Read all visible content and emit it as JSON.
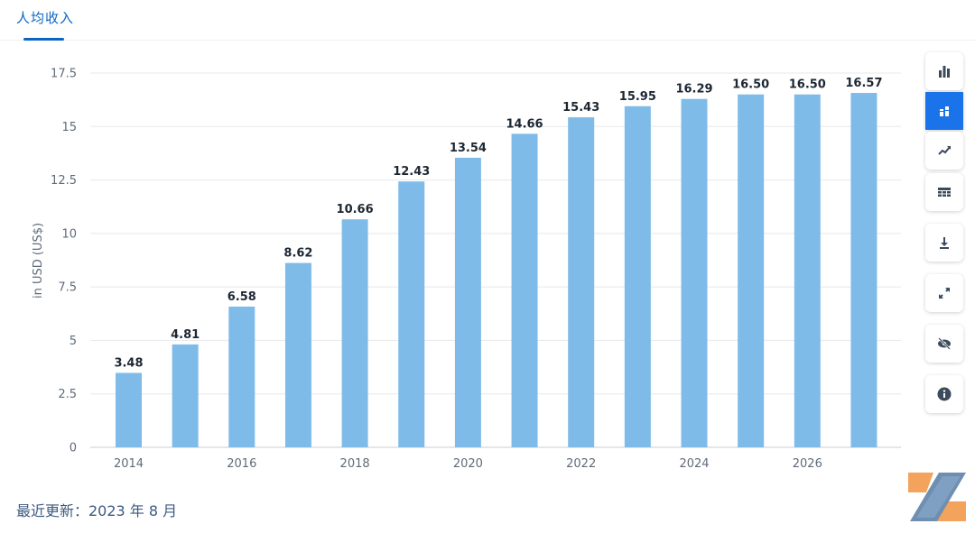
{
  "tabs": {
    "active_label": "人均收入"
  },
  "footer": {
    "last_updated": "最近更新：2023 年 8 月"
  },
  "toolbar": {
    "items": [
      {
        "icon": "bar-chart-icon",
        "active": false
      },
      {
        "icon": "stacked-bar-icon",
        "active": true
      },
      {
        "icon": "trend-line-icon",
        "active": false
      },
      {
        "icon": "table-grid-icon",
        "active": false
      },
      {
        "icon": "download-icon",
        "active": false
      },
      {
        "icon": "fullscreen-icon",
        "active": false
      },
      {
        "icon": "hide-eye-icon",
        "active": false
      },
      {
        "icon": "info-icon",
        "active": false
      }
    ]
  },
  "chart_data": {
    "type": "bar",
    "ylabel": "in USD (US$)",
    "ylim": [
      0,
      17.5
    ],
    "yticks": [
      "0",
      "2.5",
      "5",
      "7.5",
      "10",
      "12.5",
      "15",
      "17.5"
    ],
    "ytick_values": [
      0,
      2.5,
      5,
      7.5,
      10,
      12.5,
      15,
      17.5
    ],
    "categories": [
      2014,
      2015,
      2016,
      2017,
      2018,
      2019,
      2020,
      2021,
      2022,
      2023,
      2024,
      2025,
      2026,
      2027
    ],
    "xtick_labels": [
      "2014",
      "2016",
      "2018",
      "2020",
      "2022",
      "2024",
      "2026"
    ],
    "values": [
      3.48,
      4.81,
      6.58,
      8.62,
      10.66,
      12.43,
      13.54,
      14.66,
      15.43,
      15.95,
      16.29,
      16.5,
      16.5,
      16.57
    ],
    "value_labels": [
      "3.48",
      "4.81",
      "6.58",
      "8.62",
      "10.66",
      "12.43",
      "13.54",
      "14.66",
      "15.43",
      "15.95",
      "16.29",
      "16.50",
      "16.50",
      "16.57"
    ],
    "bar_color": "#7fbbe8",
    "grid": true
  },
  "colors": {
    "accent": "#0a66c2",
    "active_tool": "#1a73e8",
    "grid": "#e6e8eb",
    "axis_text": "#5f6b7a"
  }
}
